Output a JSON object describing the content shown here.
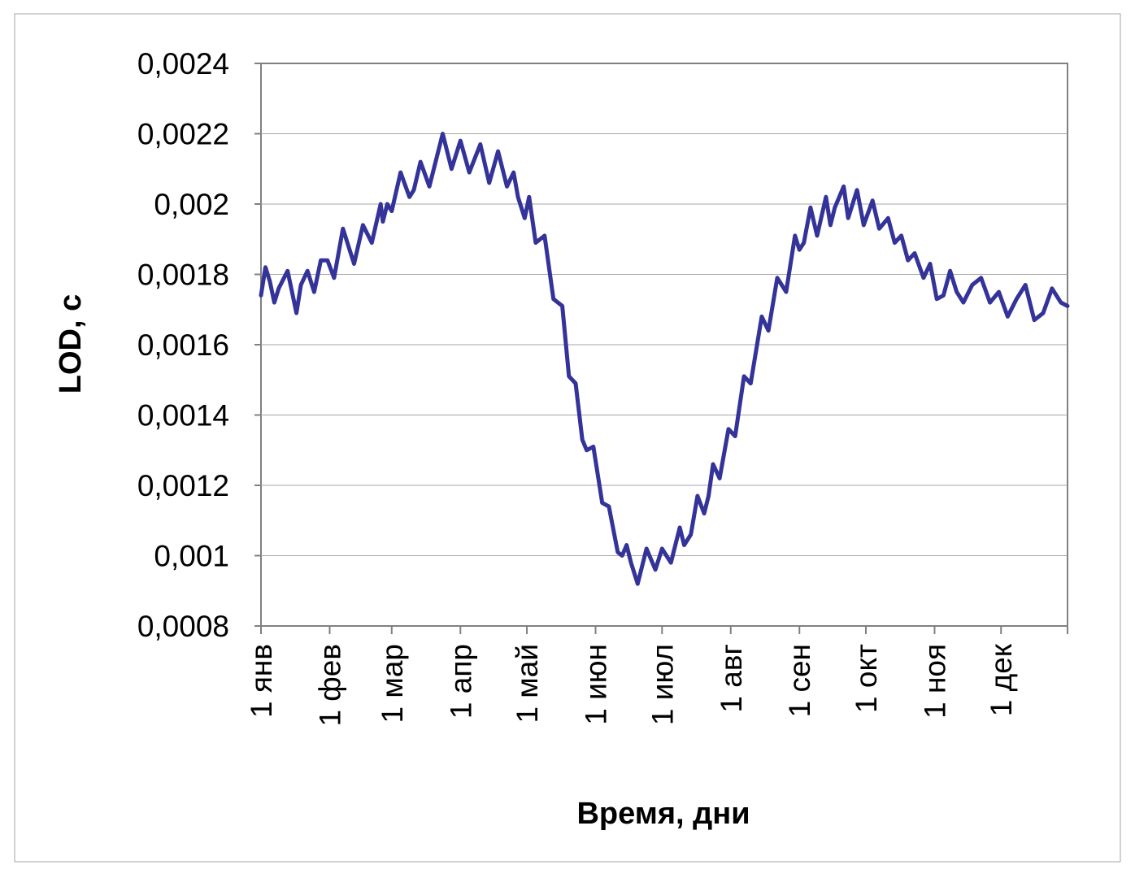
{
  "chart_data": {
    "type": "line",
    "title": "",
    "xlabel": "Время, дни",
    "ylabel": "LOD, с",
    "ylim": [
      0.0008,
      0.0024
    ],
    "xlim": [
      1,
      365
    ],
    "grid": "horizontal",
    "legend": "none",
    "y_ticks": [
      {
        "value": 0.0008,
        "label": "0,0008"
      },
      {
        "value": 0.001,
        "label": "0,001"
      },
      {
        "value": 0.0012,
        "label": "0,0012"
      },
      {
        "value": 0.0014,
        "label": "0,0014"
      },
      {
        "value": 0.0016,
        "label": "0,0016"
      },
      {
        "value": 0.0018,
        "label": "0,0018"
      },
      {
        "value": 0.002,
        "label": "0,002"
      },
      {
        "value": 0.0022,
        "label": "0,0022"
      },
      {
        "value": 0.0024,
        "label": "0,0024"
      }
    ],
    "x_ticks": [
      {
        "day": 1,
        "label": "1 янв"
      },
      {
        "day": 32,
        "label": "1 фев"
      },
      {
        "day": 60,
        "label": "1 мар"
      },
      {
        "day": 91,
        "label": "1 апр"
      },
      {
        "day": 121,
        "label": "1 май"
      },
      {
        "day": 152,
        "label": "1 июн"
      },
      {
        "day": 182,
        "label": "1 июл"
      },
      {
        "day": 213,
        "label": "1 авг"
      },
      {
        "day": 244,
        "label": "1 сен"
      },
      {
        "day": 274,
        "label": "1 окт"
      },
      {
        "day": 305,
        "label": "1 ноя"
      },
      {
        "day": 335,
        "label": "1 дек"
      }
    ],
    "colors": {
      "line": "#333399",
      "grid": "#a6a6a6",
      "frame": "#808080"
    },
    "series": [
      {
        "values": [
          [
            1,
            0.00174
          ],
          [
            3,
            0.00182
          ],
          [
            5,
            0.00178
          ],
          [
            7,
            0.00172
          ],
          [
            9,
            0.00176
          ],
          [
            13,
            0.00181
          ],
          [
            15,
            0.00175
          ],
          [
            17,
            0.00169
          ],
          [
            19,
            0.00177
          ],
          [
            22,
            0.00181
          ],
          [
            25,
            0.00175
          ],
          [
            28,
            0.00184
          ],
          [
            31,
            0.00184
          ],
          [
            34,
            0.00179
          ],
          [
            38,
            0.00193
          ],
          [
            41,
            0.00187
          ],
          [
            43,
            0.00183
          ],
          [
            47,
            0.00194
          ],
          [
            51,
            0.00189
          ],
          [
            55,
            0.002
          ],
          [
            56,
            0.00195
          ],
          [
            58,
            0.002
          ],
          [
            60,
            0.00198
          ],
          [
            64,
            0.00209
          ],
          [
            68,
            0.00202
          ],
          [
            70,
            0.00204
          ],
          [
            73,
            0.00212
          ],
          [
            77,
            0.00205
          ],
          [
            83,
            0.0022
          ],
          [
            87,
            0.0021
          ],
          [
            91,
            0.00218
          ],
          [
            95,
            0.00209
          ],
          [
            100,
            0.00217
          ],
          [
            104,
            0.00206
          ],
          [
            108,
            0.00215
          ],
          [
            112,
            0.00205
          ],
          [
            115,
            0.00209
          ],
          [
            117,
            0.00202
          ],
          [
            120,
            0.00196
          ],
          [
            122,
            0.00202
          ],
          [
            125,
            0.00189
          ],
          [
            129,
            0.00191
          ],
          [
            133,
            0.00173
          ],
          [
            137,
            0.00171
          ],
          [
            140,
            0.00151
          ],
          [
            143,
            0.00149
          ],
          [
            146,
            0.00133
          ],
          [
            148,
            0.0013
          ],
          [
            151,
            0.00131
          ],
          [
            155,
            0.00115
          ],
          [
            158,
            0.00114
          ],
          [
            162,
            0.00101
          ],
          [
            164,
            0.001
          ],
          [
            166,
            0.00103
          ],
          [
            168,
            0.00098
          ],
          [
            171,
            0.00092
          ],
          [
            175,
            0.00102
          ],
          [
            177,
            0.00099
          ],
          [
            179,
            0.00096
          ],
          [
            182,
            0.00102
          ],
          [
            184,
            0.001
          ],
          [
            186,
            0.00098
          ],
          [
            190,
            0.00108
          ],
          [
            192,
            0.00103
          ],
          [
            195,
            0.00106
          ],
          [
            198,
            0.00117
          ],
          [
            201,
            0.00112
          ],
          [
            203,
            0.00117
          ],
          [
            205,
            0.00126
          ],
          [
            208,
            0.00122
          ],
          [
            212,
            0.00136
          ],
          [
            215,
            0.00134
          ],
          [
            219,
            0.00151
          ],
          [
            222,
            0.00149
          ],
          [
            227,
            0.00168
          ],
          [
            230,
            0.00164
          ],
          [
            234,
            0.00179
          ],
          [
            238,
            0.00175
          ],
          [
            242,
            0.00191
          ],
          [
            244,
            0.00187
          ],
          [
            246,
            0.00189
          ],
          [
            249,
            0.00199
          ],
          [
            252,
            0.00191
          ],
          [
            256,
            0.00202
          ],
          [
            258,
            0.00194
          ],
          [
            260,
            0.00199
          ],
          [
            264,
            0.00205
          ],
          [
            266,
            0.00196
          ],
          [
            270,
            0.00204
          ],
          [
            273,
            0.00194
          ],
          [
            277,
            0.00201
          ],
          [
            280,
            0.00193
          ],
          [
            284,
            0.00196
          ],
          [
            287,
            0.00189
          ],
          [
            290,
            0.00191
          ],
          [
            293,
            0.00184
          ],
          [
            296,
            0.00186
          ],
          [
            300,
            0.00179
          ],
          [
            303,
            0.00183
          ],
          [
            306,
            0.00173
          ],
          [
            309,
            0.00174
          ],
          [
            312,
            0.00181
          ],
          [
            315,
            0.00175
          ],
          [
            318,
            0.00172
          ],
          [
            322,
            0.00177
          ],
          [
            326,
            0.00179
          ],
          [
            330,
            0.00172
          ],
          [
            334,
            0.00175
          ],
          [
            338,
            0.00168
          ],
          [
            342,
            0.00173
          ],
          [
            346,
            0.00177
          ],
          [
            350,
            0.00167
          ],
          [
            354,
            0.00169
          ],
          [
            358,
            0.00176
          ],
          [
            362,
            0.00172
          ],
          [
            365,
            0.00171
          ]
        ]
      }
    ]
  }
}
